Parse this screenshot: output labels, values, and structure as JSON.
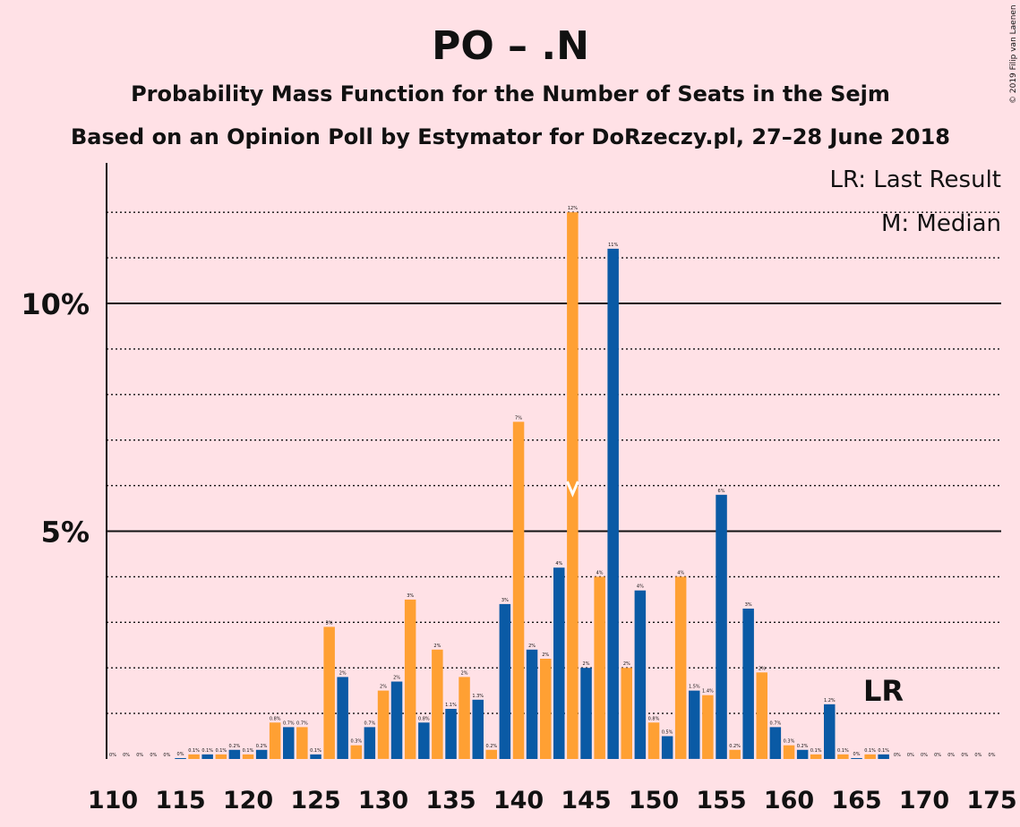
{
  "title": "PO – .N",
  "subtitle1": "Probability Mass Function for the Number of Seats in the Sejm",
  "subtitle2": "Based on an Opinion Poll by Estymator for DoRzeczy.pl, 27–28 June 2018",
  "copyright": "© 2019 Filip van Laenen",
  "legend": {
    "lr": "LR: Last Result",
    "median": "M: Median"
  },
  "markers": {
    "lr_label": "LR",
    "lr_seat": 165,
    "median_seat": 144
  },
  "colors": {
    "background": "#FFE1E6",
    "primary": "#0A5AA5",
    "accent": "#FFA033",
    "median_mark": "#FFFFFF"
  },
  "chart_data": {
    "type": "bar",
    "xlabel": "",
    "ylabel": "",
    "x_range": [
      110,
      175
    ],
    "ylim": [
      0,
      13
    ],
    "y_ticks": [
      {
        "value": 5,
        "label": "5%"
      },
      {
        "value": 10,
        "label": "10%"
      }
    ],
    "x_ticks": [
      110,
      115,
      120,
      125,
      130,
      135,
      140,
      145,
      150,
      155,
      160,
      165,
      170,
      175
    ],
    "grid": "dotted lines at every 1%, solid lines at 5% and 10%",
    "bars": [
      {
        "seat": 110,
        "value": 0.0,
        "label": "0%"
      },
      {
        "seat": 111,
        "value": 0.0,
        "label": "0%"
      },
      {
        "seat": 112,
        "value": 0.0,
        "label": "0%"
      },
      {
        "seat": 113,
        "value": 0.0,
        "label": "0%"
      },
      {
        "seat": 114,
        "value": 0.0,
        "label": "0%"
      },
      {
        "seat": 115,
        "value": 0.02,
        "label": "0%"
      },
      {
        "seat": 116,
        "value": 0.1,
        "label": "0.1%"
      },
      {
        "seat": 117,
        "value": 0.1,
        "label": "0.1%"
      },
      {
        "seat": 118,
        "value": 0.1,
        "label": "0.1%"
      },
      {
        "seat": 119,
        "value": 0.2,
        "label": "0.2%"
      },
      {
        "seat": 120,
        "value": 0.1,
        "label": "0.1%"
      },
      {
        "seat": 121,
        "value": 0.2,
        "label": "0.2%"
      },
      {
        "seat": 122,
        "value": 0.8,
        "label": "0.8%"
      },
      {
        "seat": 123,
        "value": 0.7,
        "label": "0.7%"
      },
      {
        "seat": 124,
        "value": 0.7,
        "label": "0.7%"
      },
      {
        "seat": 125,
        "value": 0.1,
        "label": "0.1%"
      },
      {
        "seat": 126,
        "value": 2.9,
        "label": "3%"
      },
      {
        "seat": 127,
        "value": 1.8,
        "label": "2%"
      },
      {
        "seat": 128,
        "value": 0.3,
        "label": "0.3%"
      },
      {
        "seat": 129,
        "value": 0.7,
        "label": "0.7%"
      },
      {
        "seat": 130,
        "value": 1.5,
        "label": "2%"
      },
      {
        "seat": 131,
        "value": 1.7,
        "label": "2%"
      },
      {
        "seat": 132,
        "value": 3.5,
        "label": "3%"
      },
      {
        "seat": 133,
        "value": 0.8,
        "label": "0.8%"
      },
      {
        "seat": 134,
        "value": 2.4,
        "label": "2%"
      },
      {
        "seat": 135,
        "value": 1.1,
        "label": "1.1%"
      },
      {
        "seat": 136,
        "value": 1.8,
        "label": "2%"
      },
      {
        "seat": 137,
        "value": 1.3,
        "label": "1.3%"
      },
      {
        "seat": 138,
        "value": 0.2,
        "label": "0.2%"
      },
      {
        "seat": 139,
        "value": 3.4,
        "label": "3%"
      },
      {
        "seat": 140,
        "value": 7.4,
        "label": "7%"
      },
      {
        "seat": 141,
        "value": 2.4,
        "label": "2%"
      },
      {
        "seat": 142,
        "value": 2.2,
        "label": "2%"
      },
      {
        "seat": 143,
        "value": 4.2,
        "label": "4%"
      },
      {
        "seat": 144,
        "value": 12.0,
        "label": "12%"
      },
      {
        "seat": 145,
        "value": 2.0,
        "label": "2%"
      },
      {
        "seat": 146,
        "value": 4.0,
        "label": "4%"
      },
      {
        "seat": 147,
        "value": 11.2,
        "label": "11%"
      },
      {
        "seat": 148,
        "value": 2.0,
        "label": "2%"
      },
      {
        "seat": 149,
        "value": 3.7,
        "label": "4%"
      },
      {
        "seat": 150,
        "value": 0.8,
        "label": "0.8%"
      },
      {
        "seat": 151,
        "value": 0.5,
        "label": "0.5%"
      },
      {
        "seat": 152,
        "value": 4.0,
        "label": "4%"
      },
      {
        "seat": 153,
        "value": 1.5,
        "label": "1.5%"
      },
      {
        "seat": 154,
        "value": 1.4,
        "label": "1.4%"
      },
      {
        "seat": 155,
        "value": 5.8,
        "label": "6%"
      },
      {
        "seat": 156,
        "value": 0.2,
        "label": "0.2%"
      },
      {
        "seat": 157,
        "value": 3.3,
        "label": "3%"
      },
      {
        "seat": 158,
        "value": 1.9,
        "label": "2%"
      },
      {
        "seat": 159,
        "value": 0.7,
        "label": "0.7%"
      },
      {
        "seat": 160,
        "value": 0.3,
        "label": "0.3%"
      },
      {
        "seat": 161,
        "value": 0.2,
        "label": "0.2%"
      },
      {
        "seat": 162,
        "value": 0.1,
        "label": "0.1%"
      },
      {
        "seat": 163,
        "value": 1.2,
        "label": "1.2%"
      },
      {
        "seat": 164,
        "value": 0.1,
        "label": "0.1%"
      },
      {
        "seat": 165,
        "value": 0.02,
        "label": "0%"
      },
      {
        "seat": 166,
        "value": 0.1,
        "label": "0.1%"
      },
      {
        "seat": 167,
        "value": 0.1,
        "label": "0.1%"
      },
      {
        "seat": 168,
        "value": 0.0,
        "label": "0%"
      },
      {
        "seat": 169,
        "value": 0.0,
        "label": "0%"
      },
      {
        "seat": 170,
        "value": 0.0,
        "label": "0%"
      },
      {
        "seat": 171,
        "value": 0.0,
        "label": "0%"
      },
      {
        "seat": 172,
        "value": 0.0,
        "label": "0%"
      },
      {
        "seat": 173,
        "value": 0.0,
        "label": "0%"
      },
      {
        "seat": 174,
        "value": 0.0,
        "label": "0%"
      },
      {
        "seat": 175,
        "value": 0.0,
        "label": "0%"
      }
    ]
  }
}
